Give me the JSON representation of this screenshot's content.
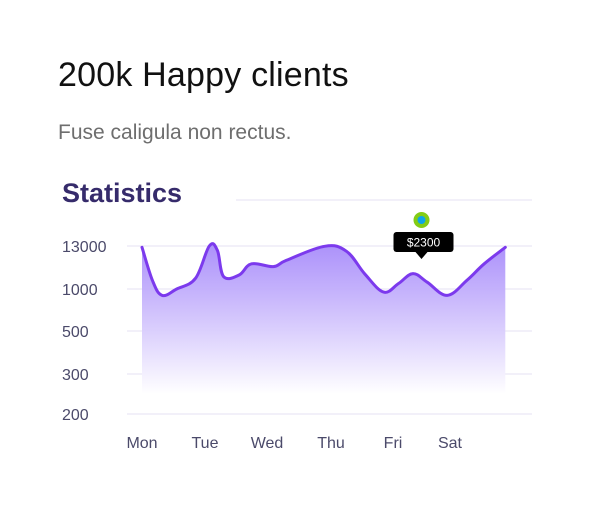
{
  "header": {
    "title": "200k Happy clients",
    "subtitle": "Fuse caligula non rectus."
  },
  "colors": {
    "line": "#7c3aed",
    "fill_top": "#a78bfa",
    "fill_bottom": "#ffffff",
    "grid": "#e5e2f3",
    "marker_outer": "#84cc16",
    "marker_inner": "#0ea5e9",
    "tooltip_bg": "#000000"
  },
  "chart_data": {
    "type": "area",
    "title": "Statistics",
    "x_ticks": [
      "Mon",
      "Tue",
      "Wed",
      "Thu",
      "Fri",
      "Sat"
    ],
    "y_ticks": [
      "13000",
      "1000",
      "500",
      "300",
      "200"
    ],
    "x": [
      0,
      0.17,
      0.32,
      0.55,
      0.85,
      1.07,
      1.2,
      1.3,
      1.55,
      1.75,
      2.1,
      2.3,
      2.9,
      3.25,
      3.55,
      3.85,
      4.1,
      4.35,
      4.6,
      4.95,
      5.3,
      5.6,
      5.97
    ],
    "values": [
      12000,
      1600,
      900,
      1000,
      1900,
      13000,
      10000,
      2100,
      2300,
      4500,
      3800,
      5500,
      12800,
      9500,
      2400,
      950,
      1400,
      2500,
      1500,
      900,
      1700,
      4500,
      12000
    ],
    "highlight": {
      "x": 4.5,
      "label": "$2300"
    },
    "grid": true,
    "legend": false
  }
}
